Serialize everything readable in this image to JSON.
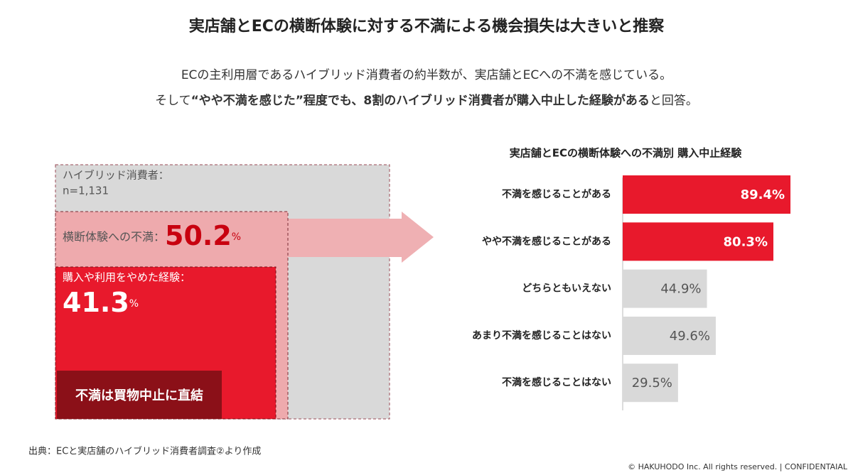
{
  "header": {
    "title": "実店舗とECの横断体験に対する不満による機会損失は大きいと推察",
    "subtitle": [
      [
        {
          "text": "ECの主利用層であるハイブリッド消費者の約半数が、実店舗とECへの不満を感じている。",
          "bold": false
        }
      ],
      [
        {
          "text": "そして",
          "bold": false
        },
        {
          "text": "“やや不満を感じた”程度でも、8割のハイブリッド消費者が購入中止した経験がある",
          "bold": true
        },
        {
          "text": "と回答。",
          "bold": false
        }
      ]
    ]
  },
  "diagram": {
    "population": {
      "label": "ハイブリッド消費者：",
      "n": "n=1,131"
    },
    "dissatisfied": {
      "label": "横断体験への不満：",
      "value": 50.2,
      "unit": "%"
    },
    "stopped": {
      "label": "購入や利用をやめた経験：",
      "value": 41.3,
      "unit": "%"
    },
    "conclusion": "不満は買物中止に直結"
  },
  "chart_data": {
    "type": "bar",
    "orientation": "horizontal",
    "title": "実店舗とECの横断体験への不満別 購入中止経験",
    "categories": [
      "不満を感じることがある",
      "やや不満を感じることがある",
      "どちらともいえない",
      "あまり不満を感じることはない",
      "不満を感じることはない"
    ],
    "values": [
      89.4,
      80.3,
      44.9,
      49.6,
      29.5
    ],
    "value_labels": [
      "89.4%",
      "80.3%",
      "44.9%",
      "49.6%",
      "29.5%"
    ],
    "colors": [
      "#e8192c",
      "#e8192c",
      "#d9d9d9",
      "#d9d9d9",
      "#d9d9d9"
    ],
    "label_colors": [
      "#ffffff",
      "#ffffff",
      "#555555",
      "#555555",
      "#555555"
    ]
  },
  "footer": {
    "source": "出典：ECと実店舗のハイブリッド消費者調査②より作成",
    "copyright": "© HAKUHODO Inc. All rights reserved. | CONFIDENTAIAL"
  }
}
